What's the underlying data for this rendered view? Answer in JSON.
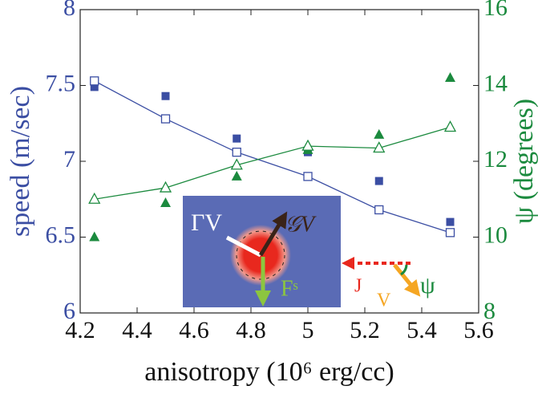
{
  "chart_data": {
    "type": "scatter",
    "x_label": "anisotropy (10⁶ erg/cc)",
    "y_label": "speed (m/sec)",
    "y2_label": "ψ (degrees)",
    "x": [
      4.25,
      4.5,
      4.75,
      5,
      5.25,
      5.5
    ],
    "xlim": [
      4.2,
      5.6
    ],
    "xticks": [
      4.2,
      4.4,
      4.6,
      4.8,
      5,
      5.2,
      5.4,
      5.6
    ],
    "ylim": [
      6,
      8
    ],
    "yticks": [
      6,
      6.5,
      7,
      7.5,
      8
    ],
    "y2lim": [
      8,
      16
    ],
    "y2ticks": [
      8,
      10,
      12,
      14,
      16
    ],
    "grid": false,
    "y_color": "#3b4ea3",
    "y2_color": "#1b8a3e",
    "series": [
      {
        "color": "#3b4ea3",
        "marker": "filled-square",
        "line": false,
        "axis": "y",
        "values": [
          7.49,
          7.43,
          7.15,
          7.06,
          6.87,
          6.6
        ]
      },
      {
        "color": "#3b4ea3",
        "marker": "open-square",
        "line": true,
        "axis": "y",
        "values": [
          7.53,
          7.28,
          7.06,
          6.9,
          6.68,
          6.53
        ]
      },
      {
        "color": "#1b8a3e",
        "marker": "filled-triangle",
        "line": false,
        "axis": "y2",
        "values": [
          10,
          10.9,
          11.6,
          12.3,
          12.7,
          14.2
        ]
      },
      {
        "color": "#1b8a3e",
        "marker": "open-triangle",
        "line": true,
        "axis": "y2",
        "values": [
          11,
          11.3,
          11.9,
          12.4,
          12.35,
          12.9
        ]
      }
    ]
  },
  "inset": {
    "labels": [
      "ΓV",
      "𝒢V",
      "Fˢ",
      "J",
      "V",
      "ψ"
    ]
  }
}
